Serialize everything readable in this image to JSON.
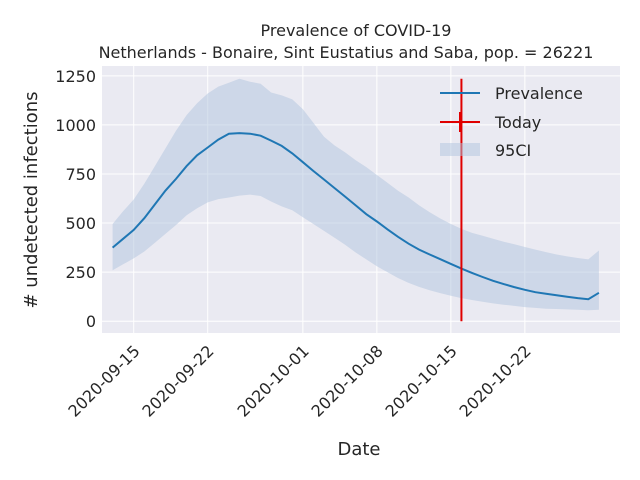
{
  "chart_data": {
    "type": "line",
    "title": "Prevalence of COVID-19",
    "subtitle": "Netherlands - Bonaire, Sint Eustatius and Saba, pop. = 26221",
    "xlabel": "Date",
    "ylabel": "# undetected infections",
    "x_range": [
      "2020-09-12",
      "2020-10-31"
    ],
    "ylim": [
      -60,
      1300
    ],
    "grid": true,
    "legend_position": "top-right",
    "x_ticks": [
      "2020-09-15",
      "2020-09-22",
      "2020-10-01",
      "2020-10-08",
      "2020-10-15",
      "2020-10-22"
    ],
    "y_ticks": [
      0,
      250,
      500,
      750,
      1000,
      1250
    ],
    "today": {
      "date": "2020-10-16",
      "label": "Today",
      "color": "#e00000"
    },
    "series": [
      {
        "name": "Prevalence",
        "color": "#1f77b4",
        "dates": [
          "2020-09-13",
          "2020-09-14",
          "2020-09-15",
          "2020-09-16",
          "2020-09-17",
          "2020-09-18",
          "2020-09-19",
          "2020-09-20",
          "2020-09-21",
          "2020-09-22",
          "2020-09-23",
          "2020-09-24",
          "2020-09-25",
          "2020-09-26",
          "2020-09-27",
          "2020-09-28",
          "2020-09-29",
          "2020-09-30",
          "2020-10-01",
          "2020-10-02",
          "2020-10-03",
          "2020-10-04",
          "2020-10-05",
          "2020-10-06",
          "2020-10-07",
          "2020-10-08",
          "2020-10-09",
          "2020-10-10",
          "2020-10-11",
          "2020-10-12",
          "2020-10-13",
          "2020-10-14",
          "2020-10-15",
          "2020-10-16",
          "2020-10-17",
          "2020-10-18",
          "2020-10-19",
          "2020-10-20",
          "2020-10-21",
          "2020-10-22",
          "2020-10-23",
          "2020-10-24",
          "2020-10-25",
          "2020-10-26",
          "2020-10-27",
          "2020-10-28",
          "2020-10-29"
        ],
        "values": [
          375,
          420,
          465,
          525,
          595,
          665,
          725,
          790,
          845,
          885,
          925,
          955,
          958,
          955,
          945,
          920,
          893,
          855,
          810,
          765,
          722,
          678,
          635,
          590,
          545,
          508,
          468,
          430,
          395,
          365,
          340,
          316,
          292,
          268,
          246,
          225,
          206,
          189,
          174,
          160,
          148,
          140,
          132,
          125,
          118,
          112,
          145
        ]
      }
    ],
    "band": {
      "name": "95CI",
      "color": "#b0c4de",
      "upper": [
        495,
        560,
        620,
        700,
        790,
        880,
        970,
        1050,
        1110,
        1160,
        1195,
        1215,
        1235,
        1220,
        1210,
        1165,
        1150,
        1130,
        1080,
        1010,
        940,
        895,
        860,
        820,
        785,
        745,
        705,
        665,
        630,
        590,
        555,
        523,
        495,
        470,
        450,
        435,
        420,
        405,
        392,
        378,
        365,
        352,
        340,
        330,
        322,
        315,
        360
      ],
      "lower": [
        260,
        290,
        320,
        355,
        400,
        445,
        490,
        540,
        575,
        605,
        622,
        630,
        640,
        645,
        638,
        610,
        585,
        565,
        530,
        495,
        460,
        425,
        390,
        350,
        315,
        280,
        250,
        220,
        195,
        175,
        158,
        143,
        130,
        118,
        108,
        99,
        91,
        84,
        78,
        72,
        68,
        64,
        62,
        60,
        58,
        56,
        58
      ]
    }
  }
}
